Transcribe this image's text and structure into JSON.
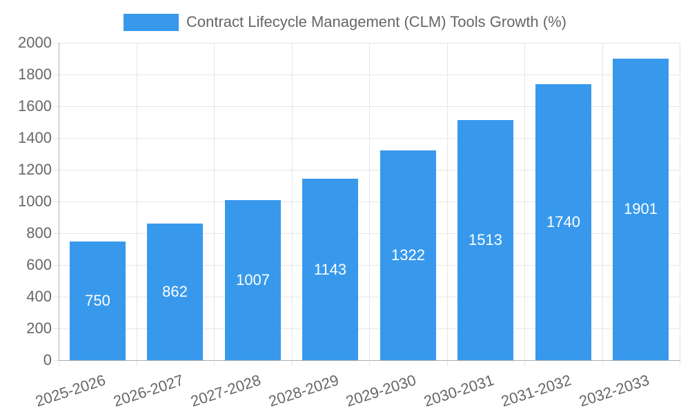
{
  "chart_data": {
    "type": "bar",
    "title": "Contract Lifecycle Management (CLM) Tools Growth (%)",
    "categories": [
      "2025-2026",
      "2026-2027",
      "2027-2028",
      "2028-2029",
      "2029-2030",
      "2030-2031",
      "2031-2032",
      "2032-2033"
    ],
    "values": [
      750,
      862,
      1007,
      1143,
      1322,
      1513,
      1740,
      1901
    ],
    "value_labels": [
      "750",
      "862",
      "1007",
      "1143",
      "1322",
      "1513",
      "1740",
      "1901"
    ],
    "xlabel": "",
    "ylabel": "",
    "ylim": [
      0,
      2000
    ],
    "yticks": [
      0,
      200,
      400,
      600,
      800,
      1000,
      1200,
      1400,
      1600,
      1800,
      2000
    ],
    "grid": true,
    "legend_position": "top",
    "colors": {
      "bar": "#3899ec",
      "text": "#666666",
      "grid": "#e6e6e6",
      "axis": "#ababab",
      "value_label": "#ffffff"
    }
  }
}
